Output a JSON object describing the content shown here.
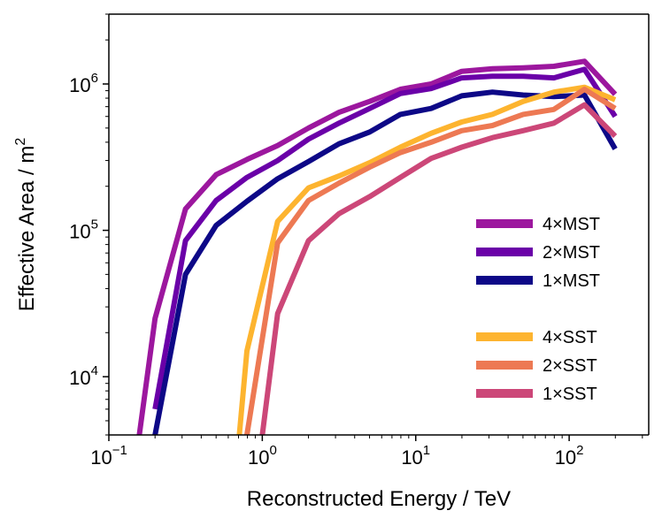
{
  "chart_data": {
    "type": "line",
    "xlabel": "Reconstructed Energy / TeV",
    "ylabel_main": "Effective Area / m",
    "ylabel_sup": "2",
    "xscale": "log",
    "yscale": "log",
    "xlim": [
      0.1,
      330
    ],
    "ylim": [
      4000,
      3000000
    ],
    "x_ticks": [
      {
        "value": 0.1,
        "base": "10",
        "exp": "−1"
      },
      {
        "value": 1,
        "base": "10",
        "exp": "0"
      },
      {
        "value": 10,
        "base": "10",
        "exp": "1"
      },
      {
        "value": 100,
        "base": "10",
        "exp": "2"
      }
    ],
    "y_ticks": [
      {
        "value": 10000,
        "base": "10",
        "exp": "4"
      },
      {
        "value": 100000,
        "base": "10",
        "exp": "5"
      },
      {
        "value": 1000000,
        "base": "10",
        "exp": "6"
      }
    ],
    "grid": false,
    "legend_position": "lower-right",
    "series": [
      {
        "name": "4×MST",
        "color": "#9c179e",
        "x": [
          0.158,
          0.2,
          0.316,
          0.5,
          0.794,
          1.259,
          2.0,
          3.162,
          5.012,
          7.943,
          12.59,
          19.95,
          31.62,
          50.12,
          79.43,
          125.9,
          199.5
        ],
        "y": [
          4000,
          25000,
          140000,
          240000,
          305000,
          380000,
          500000,
          640000,
          760000,
          920000,
          1000000,
          1220000,
          1270000,
          1290000,
          1320000,
          1430000,
          850000
        ]
      },
      {
        "name": "2×MST",
        "color": "#6a00a8",
        "x": [
          0.2,
          0.316,
          0.5,
          0.794,
          1.259,
          2.0,
          3.162,
          5.012,
          7.943,
          12.59,
          19.95,
          31.62,
          50.12,
          79.43,
          125.9,
          199.5
        ],
        "y": [
          6000,
          85000,
          160000,
          230000,
          300000,
          420000,
          540000,
          680000,
          860000,
          930000,
          1100000,
          1130000,
          1130000,
          1100000,
          1260000,
          600000
        ]
      },
      {
        "name": "1×MST",
        "color": "#0d0887",
        "x": [
          0.2,
          0.316,
          0.5,
          0.794,
          1.259,
          2.0,
          3.162,
          5.012,
          7.943,
          12.59,
          19.95,
          31.62,
          50.12,
          79.43,
          125.9,
          199.5
        ],
        "y": [
          4000,
          50000,
          108000,
          158000,
          225000,
          295000,
          390000,
          470000,
          620000,
          680000,
          830000,
          880000,
          840000,
          820000,
          840000,
          360000
        ]
      },
      {
        "name": "4×SST",
        "color": "#fdb42f",
        "x": [
          0.708,
          0.794,
          1.259,
          2.0,
          3.162,
          5.012,
          7.943,
          12.59,
          19.95,
          31.62,
          50.12,
          79.43,
          125.9,
          199.5
        ],
        "y": [
          4000,
          15000,
          115000,
          195000,
          235000,
          290000,
          370000,
          460000,
          550000,
          620000,
          760000,
          880000,
          950000,
          780000
        ]
      },
      {
        "name": "2×SST",
        "color": "#ed7953",
        "x": [
          0.794,
          1.259,
          2.0,
          3.162,
          5.012,
          7.943,
          12.59,
          19.95,
          31.62,
          50.12,
          79.43,
          125.9,
          199.5
        ],
        "y": [
          4000,
          82000,
          160000,
          210000,
          270000,
          340000,
          400000,
          480000,
          520000,
          620000,
          670000,
          920000,
          680000
        ]
      },
      {
        "name": "1×SST",
        "color": "#cc4778",
        "x": [
          1.0,
          1.259,
          2.0,
          3.162,
          5.012,
          7.943,
          12.59,
          19.95,
          31.62,
          50.12,
          79.43,
          125.9,
          199.5
        ],
        "y": [
          4000,
          27000,
          85000,
          130000,
          170000,
          230000,
          310000,
          370000,
          430000,
          480000,
          540000,
          720000,
          440000
        ]
      }
    ]
  }
}
